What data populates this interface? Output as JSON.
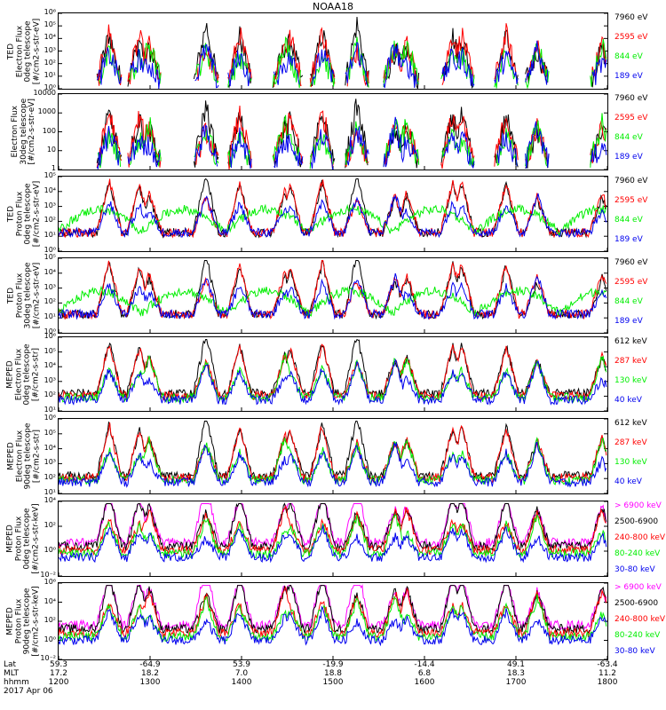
{
  "title": "NOAA18",
  "footer": {
    "row_labels": [
      "Lat",
      "MLT",
      "hhmm"
    ],
    "date": "2017 Apr 06",
    "columns": [
      {
        "lat": "59.3",
        "mlt": "17.2",
        "hhmm": "1200"
      },
      {
        "lat": "-64.9",
        "mlt": "18.2",
        "hhmm": "1300"
      },
      {
        "lat": "53.9",
        "mlt": "7.0",
        "hhmm": "1400"
      },
      {
        "lat": "-19.9",
        "mlt": "18.8",
        "hhmm": "1500"
      },
      {
        "lat": "-14.4",
        "mlt": "6.8",
        "hhmm": "1600"
      },
      {
        "lat": "49.1",
        "mlt": "18.3",
        "hhmm": "1700"
      },
      {
        "lat": "-63.4",
        "mlt": "11.2",
        "hhmm": "1800"
      }
    ]
  },
  "colors": {
    "black": "#000000",
    "red": "#ff0000",
    "green": "#00ee00",
    "blue": "#0000ee",
    "magenta": "#ff00ff"
  },
  "chart_data": [
    {
      "type": "line",
      "ylabel_lines": [
        "TED",
        "Electron Flux",
        "0deg telescope",
        "[#/cm2-s-str-eV]"
      ],
      "yscale": "log",
      "y_ticks": [
        "10⁰",
        "10¹",
        "10²",
        "10³",
        "10⁴",
        "10⁵",
        "10⁶"
      ],
      "legend": [
        {
          "label": "7960 eV",
          "color": "#000000"
        },
        {
          "label": "2595 eV",
          "color": "#ff0000"
        },
        {
          "label": "844 eV",
          "color": "#00ee00"
        },
        {
          "label": "189 eV",
          "color": "#0000ee"
        }
      ]
    },
    {
      "type": "line",
      "ylabel_lines": [
        "Electron Flux",
        "30deg telescope",
        "[#/cm2-s-str-eV]"
      ],
      "yscale": "log",
      "y_ticks": [
        "1",
        "10",
        "100",
        "1000",
        "10000"
      ],
      "legend": [
        {
          "label": "7960 eV",
          "color": "#000000"
        },
        {
          "label": "2595 eV",
          "color": "#ff0000"
        },
        {
          "label": "844 eV",
          "color": "#00ee00"
        },
        {
          "label": "189 eV",
          "color": "#0000ee"
        }
      ]
    },
    {
      "type": "line",
      "ylabel_lines": [
        "TED",
        "Proton Flux",
        "0deg telescope",
        "[#/cm2-s-str-eV]"
      ],
      "yscale": "log",
      "y_ticks": [
        "10⁰",
        "10¹",
        "10²",
        "10³",
        "10⁴",
        "10⁵"
      ],
      "legend": [
        {
          "label": "7960 eV",
          "color": "#000000"
        },
        {
          "label": "2595 eV",
          "color": "#ff0000"
        },
        {
          "label": "844 eV",
          "color": "#00ee00"
        },
        {
          "label": "189 eV",
          "color": "#0000ee"
        }
      ]
    },
    {
      "type": "line",
      "ylabel_lines": [
        "TED",
        "Proton Flux",
        "30deg telescope",
        "[#/cm2-s-str-eV]"
      ],
      "yscale": "log",
      "y_ticks": [
        "10⁰",
        "10¹",
        "10²",
        "10³",
        "10⁴",
        "10⁵"
      ],
      "legend": [
        {
          "label": "7960 eV",
          "color": "#000000"
        },
        {
          "label": "2595 eV",
          "color": "#ff0000"
        },
        {
          "label": "844 eV",
          "color": "#00ee00"
        },
        {
          "label": "189 eV",
          "color": "#0000ee"
        }
      ]
    },
    {
      "type": "line",
      "ylabel_lines": [
        "MEPED",
        "Electron Flux",
        "0deg telescope",
        "[#/cm2-s-str]"
      ],
      "yscale": "log",
      "y_ticks": [
        "10¹",
        "10²",
        "10³",
        "10⁴",
        "10⁵",
        "10⁶"
      ],
      "legend": [
        {
          "label": "612 keV",
          "color": "#000000"
        },
        {
          "label": "287 keV",
          "color": "#ff0000"
        },
        {
          "label": "130 keV",
          "color": "#00ee00"
        },
        {
          "label": "40 keV",
          "color": "#0000ee"
        }
      ]
    },
    {
      "type": "line",
      "ylabel_lines": [
        "MEPED",
        "Electron Flux",
        "90deg telescope",
        "[#/cm2-s-str]"
      ],
      "yscale": "log",
      "y_ticks": [
        "10¹",
        "10²",
        "10³",
        "10⁴",
        "10⁵",
        "10⁶"
      ],
      "legend": [
        {
          "label": "612 keV",
          "color": "#000000"
        },
        {
          "label": "287 keV",
          "color": "#ff0000"
        },
        {
          "label": "130 keV",
          "color": "#00ee00"
        },
        {
          "label": "40 keV",
          "color": "#0000ee"
        }
      ]
    },
    {
      "type": "line",
      "ylabel_lines": [
        "MEPED",
        "Proton Flux",
        "0deg telescope",
        "[#/cm2-s-str-keV]"
      ],
      "yscale": "log",
      "y_ticks": [
        "10⁻²",
        "10⁰",
        "10²",
        "10⁴"
      ],
      "legend": [
        {
          "label": "> 6900 keV",
          "color": "#ff00ff"
        },
        {
          "label": "2500-6900",
          "color": "#000000"
        },
        {
          "label": "240-800 keV",
          "color": "#ff0000"
        },
        {
          "label": "80-240 keV",
          "color": "#00ee00"
        },
        {
          "label": "30-80 keV",
          "color": "#0000ee"
        }
      ]
    },
    {
      "type": "line",
      "ylabel_lines": [
        "MEPED",
        "Proton Flux",
        "90deg telescope",
        "[#/cm2-s-str-keV]"
      ],
      "yscale": "log",
      "y_ticks": [
        "10⁻²",
        "10⁰",
        "10²",
        "10⁴",
        "10⁶"
      ],
      "legend": [
        {
          "label": "> 6900 keV",
          "color": "#ff00ff"
        },
        {
          "label": "2500-6900",
          "color": "#000000"
        },
        {
          "label": "240-800 keV",
          "color": "#ff0000"
        },
        {
          "label": "80-240 keV",
          "color": "#00ee00"
        },
        {
          "label": "30-80 keV",
          "color": "#0000ee"
        }
      ]
    }
  ]
}
